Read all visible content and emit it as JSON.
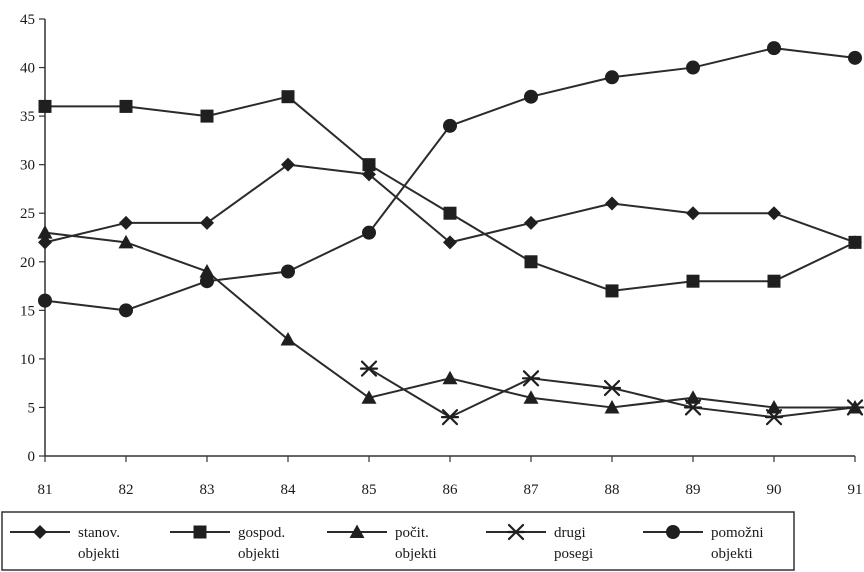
{
  "chart_data": {
    "type": "line",
    "title": "",
    "xlabel": "",
    "ylabel": "",
    "x": [
      "81",
      "82",
      "83",
      "84",
      "85",
      "86",
      "87",
      "88",
      "89",
      "90",
      "91"
    ],
    "ylim": [
      0,
      45
    ],
    "yticks": [
      "0",
      "5",
      "10",
      "15",
      "20",
      "25",
      "30",
      "35",
      "40",
      "45"
    ],
    "grid": false,
    "legend_position": "bottom",
    "series": [
      {
        "name": "stanov. objekti",
        "label_lines": [
          "stanov.",
          "objekti"
        ],
        "marker": "diamond",
        "values": [
          22,
          24,
          24,
          30,
          29,
          22,
          24,
          26,
          25,
          25,
          22
        ]
      },
      {
        "name": "gospod. objekti",
        "label_lines": [
          "gospod.",
          "objekti"
        ],
        "marker": "square",
        "values": [
          36,
          36,
          35,
          37,
          30,
          25,
          20,
          17,
          18,
          18,
          22
        ]
      },
      {
        "name": "počit. objekti",
        "label_lines": [
          "počit.",
          "objekti"
        ],
        "marker": "triangle",
        "values": [
          23,
          22,
          19,
          12,
          6,
          8,
          6,
          5,
          6,
          5,
          5
        ]
      },
      {
        "name": "drugi posegi",
        "label_lines": [
          "drugi",
          "posegi"
        ],
        "marker": "asterisk",
        "values": [
          null,
          null,
          null,
          null,
          9,
          4,
          8,
          7,
          5,
          4,
          5
        ]
      },
      {
        "name": "pomožni objekti",
        "label_lines": [
          "pomožni",
          "objekti"
        ],
        "marker": "circle",
        "values": [
          16,
          15,
          18,
          19,
          23,
          34,
          37,
          39,
          40,
          42,
          41
        ]
      }
    ],
    "colors": {
      "line": "#2b2b2b",
      "marker": "#1f1f1f",
      "axis": "#333333"
    }
  }
}
